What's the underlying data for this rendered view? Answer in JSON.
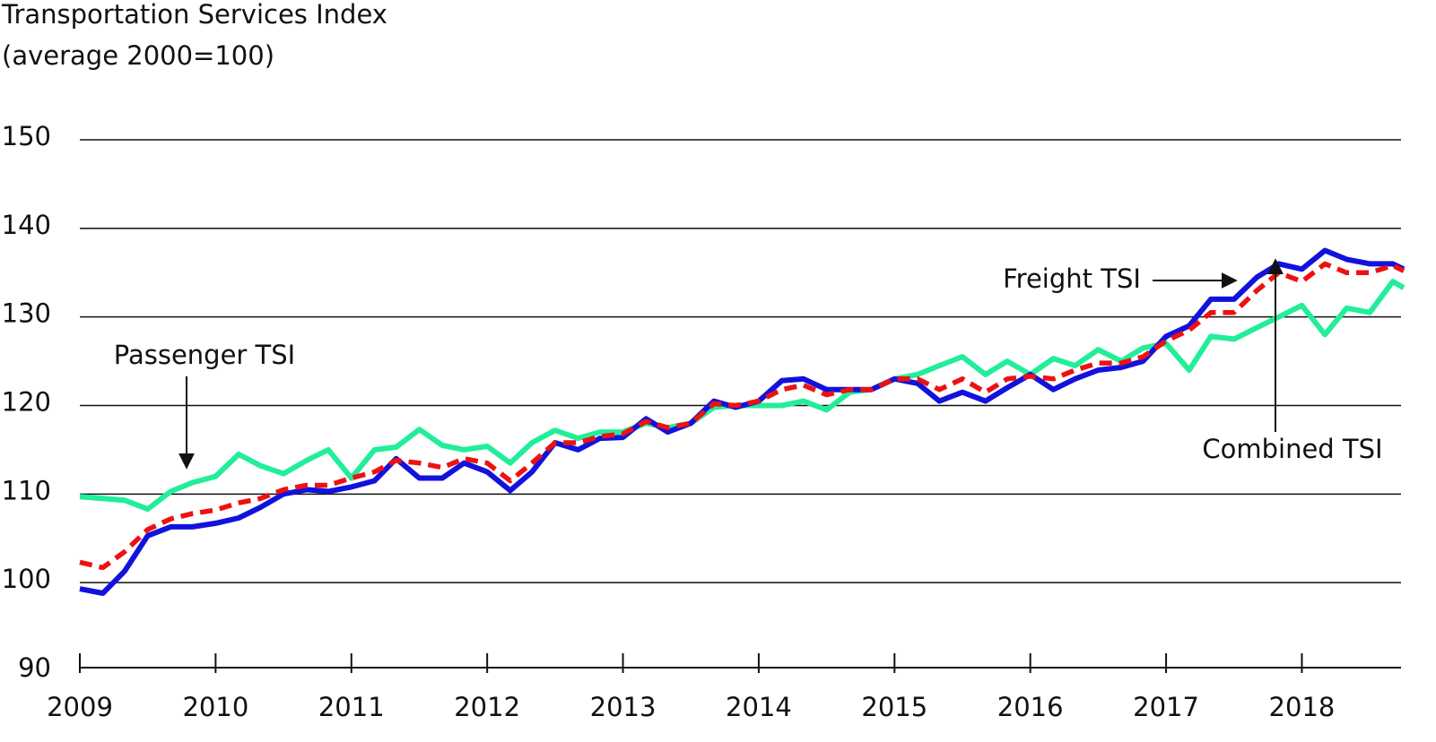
{
  "chart_data": {
    "type": "line",
    "title": "Transportation Services Index",
    "subtitle": "(average 2000=100)",
    "x": [
      2009,
      2009.17,
      2009.33,
      2009.5,
      2009.67,
      2009.83,
      2010,
      2010.17,
      2010.33,
      2010.5,
      2010.67,
      2010.83,
      2011,
      2011.17,
      2011.33,
      2011.5,
      2011.67,
      2011.83,
      2012,
      2012.17,
      2012.33,
      2012.5,
      2012.67,
      2012.83,
      2013,
      2013.17,
      2013.33,
      2013.5,
      2013.67,
      2013.83,
      2014,
      2014.17,
      2014.33,
      2014.5,
      2014.67,
      2014.83,
      2015,
      2015.17,
      2015.33,
      2015.5,
      2015.67,
      2015.83,
      2016,
      2016.17,
      2016.33,
      2016.5,
      2016.67,
      2016.83,
      2017,
      2017.17,
      2017.33,
      2017.5,
      2017.67,
      2017.83,
      2018,
      2018.17,
      2018.33,
      2018.5,
      2018.67,
      2018.75
    ],
    "series": [
      {
        "name": "Passenger TSI",
        "color": "#22ee9a",
        "dashed": false,
        "values": [
          109.7,
          109.5,
          109.3,
          108.3,
          110.3,
          111.3,
          112.0,
          114.5,
          113.2,
          112.3,
          113.8,
          115.0,
          111.8,
          115.0,
          115.3,
          117.3,
          115.5,
          115.0,
          115.4,
          113.5,
          115.8,
          117.2,
          116.3,
          117.0,
          117.0,
          118.0,
          117.5,
          118.0,
          119.8,
          120.0,
          120.0,
          120.0,
          120.5,
          119.5,
          121.5,
          121.8,
          123.0,
          123.5,
          124.5,
          125.5,
          123.5,
          125.0,
          123.5,
          125.3,
          124.5,
          126.3,
          125.0,
          126.5,
          127.0,
          124.0,
          127.8,
          127.5,
          128.8,
          130.0,
          131.3,
          128.0,
          131.0,
          130.5,
          134.0,
          133.3
        ]
      },
      {
        "name": "Freight TSI",
        "color": "#1212dd",
        "dashed": false,
        "values": [
          99.3,
          98.8,
          101.3,
          105.3,
          106.3,
          106.3,
          106.7,
          107.3,
          108.5,
          110.0,
          110.5,
          110.3,
          110.8,
          111.5,
          114.0,
          111.8,
          111.8,
          113.5,
          112.5,
          110.4,
          112.5,
          115.8,
          115.0,
          116.3,
          116.4,
          118.5,
          117.0,
          118.0,
          120.5,
          119.8,
          120.5,
          122.8,
          123.0,
          121.8,
          121.8,
          121.8,
          123.0,
          122.5,
          120.5,
          121.5,
          120.5,
          122.0,
          123.5,
          121.8,
          123.0,
          124.0,
          124.3,
          125.0,
          127.8,
          129.0,
          132.0,
          132.0,
          134.5,
          136.0,
          135.4,
          137.5,
          136.5,
          136.0,
          136.0,
          135.4
        ]
      },
      {
        "name": "Combined TSI",
        "color": "#ee1111",
        "dashed": true,
        "values": [
          102.3,
          101.7,
          103.5,
          106.0,
          107.2,
          107.8,
          108.2,
          109.0,
          109.5,
          110.5,
          111.0,
          111.0,
          111.8,
          112.5,
          113.8,
          113.5,
          113.0,
          114.0,
          113.5,
          111.5,
          113.5,
          115.8,
          115.8,
          116.5,
          116.8,
          118.2,
          117.5,
          118.0,
          120.2,
          120.0,
          120.5,
          121.8,
          122.3,
          121.2,
          121.8,
          121.8,
          123.0,
          123.0,
          121.8,
          123.0,
          121.5,
          123.0,
          123.3,
          123.0,
          124.0,
          124.8,
          124.8,
          125.5,
          127.3,
          128.5,
          130.5,
          130.5,
          133.0,
          135.0,
          134.0,
          136.0,
          135.0,
          135.0,
          135.8,
          135.2
        ]
      }
    ],
    "xlim": [
      2009,
      2018.75
    ],
    "xticks": [
      2009,
      2010,
      2011,
      2012,
      2013,
      2014,
      2015,
      2016,
      2017,
      2018
    ],
    "ylim": [
      90,
      150
    ],
    "yticks": [
      90,
      100,
      110,
      120,
      130,
      140,
      150
    ],
    "grid": true
  }
}
